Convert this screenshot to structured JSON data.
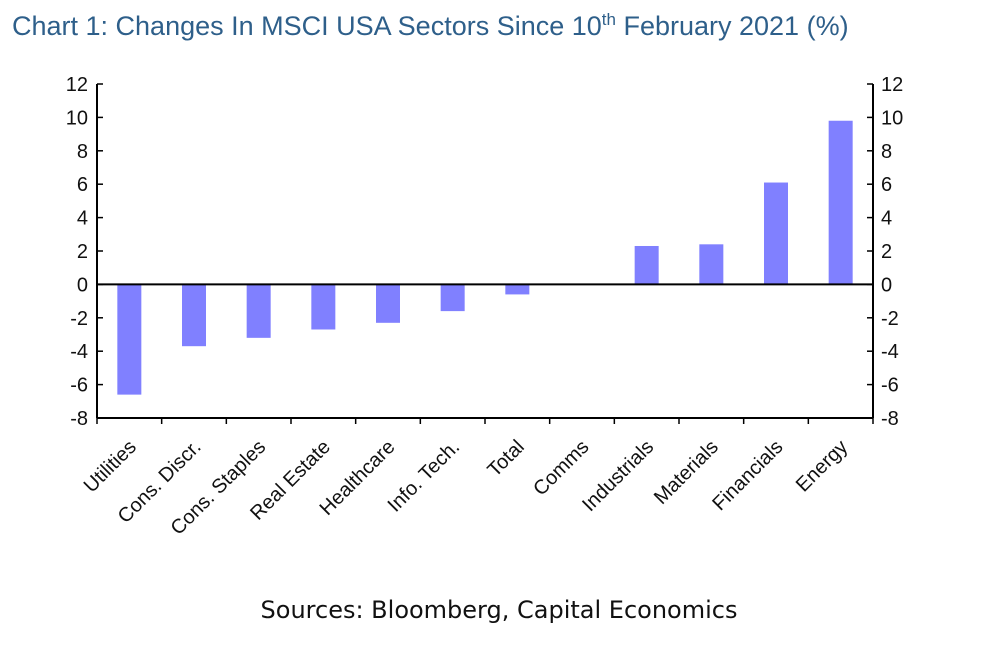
{
  "title": {
    "prefix": "Chart 1: Changes In MSCI USA Sectors Since 10",
    "superscript": "th",
    "suffix": " February 2021 (%)"
  },
  "source": "Sources: Bloomberg, Capital Economics",
  "colors": {
    "bar": "#8080ff",
    "title": "#2e5f8a",
    "axis": "#000000"
  },
  "chart_data": {
    "type": "bar",
    "title": "Chart 1: Changes In MSCI USA Sectors Since 10th February 2021 (%)",
    "xlabel": "",
    "ylabel": "",
    "ylim": [
      -8,
      12
    ],
    "yticks": [
      12,
      10,
      8,
      6,
      4,
      2,
      0,
      -2,
      -4,
      -6,
      -8
    ],
    "dual_y_axis": true,
    "grid": false,
    "legend": "none",
    "categories": [
      "Utilities",
      "Cons. Discr.",
      "Cons. Staples",
      "Real Estate",
      "Healthcare",
      "Info. Tech.",
      "Total",
      "Comms",
      "Industrials",
      "Materials",
      "Financials",
      "Energy"
    ],
    "values": [
      -6.6,
      -3.7,
      -3.2,
      -2.7,
      -2.3,
      -1.6,
      -0.6,
      0.0,
      2.3,
      2.4,
      6.1,
      9.8
    ]
  }
}
